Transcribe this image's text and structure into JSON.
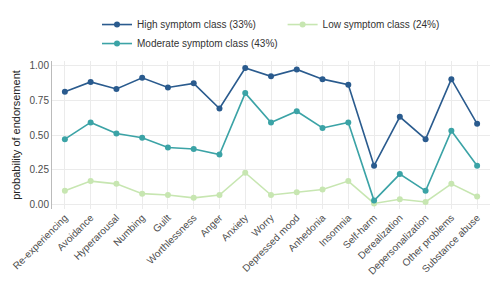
{
  "chart_data": {
    "type": "line",
    "categories": [
      "Re-experiencing",
      "Avoidance",
      "Hyperarousal",
      "Numbing",
      "Guilt",
      "Worthlessness",
      "Anger",
      "Anxiety",
      "Worry",
      "Depressed mood",
      "Anhedonia",
      "Insomnia",
      "Self-harm",
      "Derealization",
      "Depersonalization",
      "Other problems",
      "Substance abuse"
    ],
    "series": [
      {
        "name": "High symptom class (33%)",
        "color": "#2a5b8e",
        "values": [
          0.81,
          0.88,
          0.83,
          0.91,
          0.84,
          0.87,
          0.69,
          0.98,
          0.92,
          0.97,
          0.9,
          0.86,
          0.28,
          0.63,
          0.47,
          0.9,
          0.58
        ]
      },
      {
        "name": "Low symptom class (24%)",
        "color": "#c7e6b1",
        "values": [
          0.1,
          0.17,
          0.15,
          0.08,
          0.07,
          0.05,
          0.07,
          0.23,
          0.07,
          0.09,
          0.11,
          0.17,
          0.01,
          0.04,
          0.02,
          0.15,
          0.06
        ]
      },
      {
        "name": "Moderate symptom class (43%)",
        "color": "#3ba3a6",
        "values": [
          0.47,
          0.59,
          0.51,
          0.48,
          0.41,
          0.4,
          0.36,
          0.8,
          0.59,
          0.67,
          0.55,
          0.59,
          0.03,
          0.22,
          0.1,
          0.53,
          0.28
        ]
      }
    ],
    "y_label": "probability of endorsement",
    "ylim": [
      -0.03,
      1.03
    ],
    "yticks": [
      {
        "value": 0,
        "label": "0.00"
      },
      {
        "value": 0.25,
        "label": "0.25"
      },
      {
        "value": 0.5,
        "label": "0.50"
      },
      {
        "value": 0.75,
        "label": "0.75"
      },
      {
        "value": 1,
        "label": "1.00"
      }
    ],
    "grid": true,
    "legend": "top",
    "marker": "circle",
    "line_style": "solid"
  }
}
